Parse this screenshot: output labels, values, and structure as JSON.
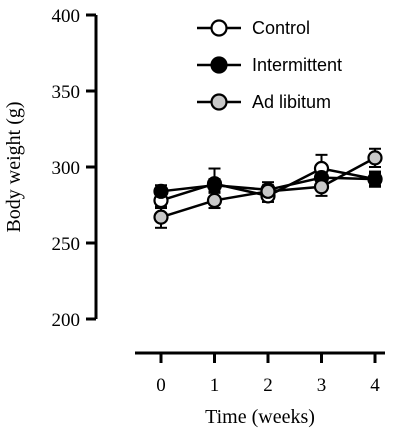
{
  "chart_data": {
    "type": "line",
    "xlabel": "Time (weeks)",
    "ylabel": "Body weight (g)",
    "x": [
      0,
      1,
      2,
      3,
      4
    ],
    "xlim": [
      -0.5,
      4.5
    ],
    "ylim": [
      200,
      400
    ],
    "yticks": [
      200,
      250,
      300,
      350,
      400
    ],
    "grid": false,
    "legend_position": "top-right",
    "series": [
      {
        "name": "Control",
        "marker": "open-circle",
        "color": "#ffffff",
        "values": [
          278,
          289,
          281,
          299,
          292
        ],
        "errors": [
          5,
          10,
          4,
          9,
          5
        ]
      },
      {
        "name": "Intermittent",
        "marker": "filled-circle",
        "color": "#000000",
        "values": [
          284,
          288,
          285,
          293,
          292
        ],
        "errors": [
          4,
          4,
          5,
          4,
          4
        ]
      },
      {
        "name": "Ad libitum",
        "marker": "gray-circle",
        "color": "#c8c8c8",
        "values": [
          267,
          278,
          284,
          287,
          306
        ],
        "errors": [
          7,
          5,
          4,
          6,
          6
        ]
      }
    ]
  }
}
